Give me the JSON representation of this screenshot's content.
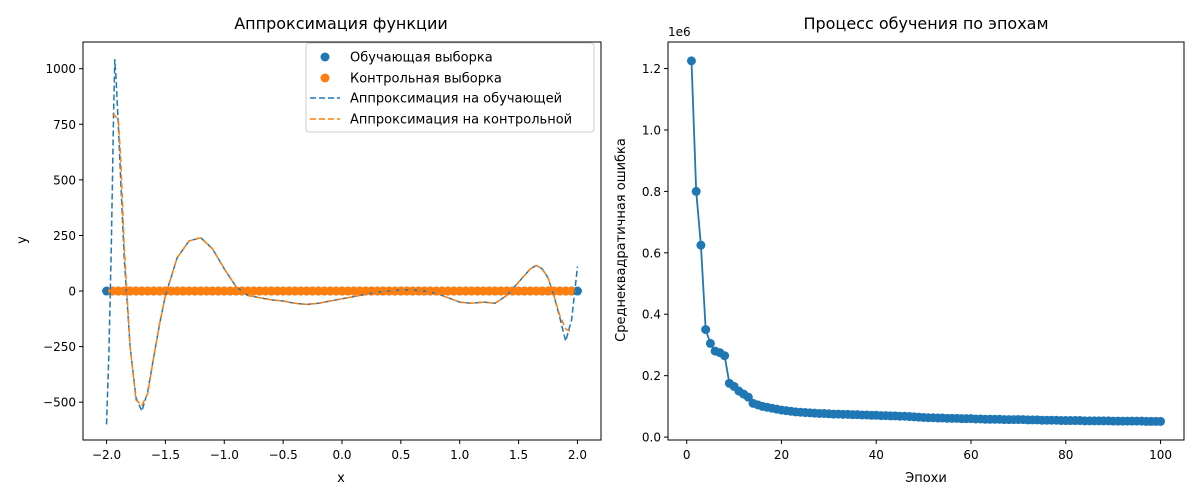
{
  "chart_data": [
    {
      "type": "scatter",
      "title": "Аппроксимация функции",
      "xlabel": "x",
      "ylabel": "y",
      "xlim": [
        -2.2,
        2.2
      ],
      "ylim": [
        -670,
        1120
      ],
      "xticks": [
        -2.0,
        -1.5,
        -1.0,
        -0.5,
        0.0,
        0.5,
        1.0,
        1.5,
        2.0
      ],
      "xtick_labels": [
        "−2.0",
        "−1.5",
        "−1.0",
        "−0.5",
        "0.0",
        "0.5",
        "1.0",
        "1.5",
        "2.0"
      ],
      "yticks": [
        -500,
        -250,
        0,
        250,
        500,
        750,
        1000
      ],
      "ytick_labels": [
        "−500",
        "−250",
        "0",
        "250",
        "500",
        "750",
        "1000"
      ],
      "legend_position": "top-right",
      "grid": false,
      "series": [
        {
          "name": "Обучающая выборка",
          "kind": "scatter",
          "color": "#1f77b4",
          "x_range": [
            -2.0,
            2.0
          ],
          "count": 81,
          "y_value": 0
        },
        {
          "name": "Контрольная выборка",
          "kind": "scatter",
          "color": "#ff7f0e",
          "x_range": [
            -1.95,
            1.95
          ],
          "count": 79,
          "y_value": 0
        },
        {
          "name": "Аппроксимация на обучающей",
          "kind": "dashed-line",
          "color": "#1f77b4",
          "x": [
            -2.0,
            -1.98,
            -1.96,
            -1.94,
            -1.93,
            -1.92,
            -1.9,
            -1.88,
            -1.85,
            -1.8,
            -1.75,
            -1.7,
            -1.65,
            -1.6,
            -1.55,
            -1.5,
            -1.4,
            -1.3,
            -1.2,
            -1.1,
            -1.0,
            -0.9,
            -0.8,
            -0.7,
            -0.6,
            -0.5,
            -0.4,
            -0.3,
            -0.2,
            -0.1,
            0.0,
            0.1,
            0.2,
            0.3,
            0.4,
            0.5,
            0.6,
            0.7,
            0.8,
            0.9,
            1.0,
            1.1,
            1.2,
            1.3,
            1.4,
            1.5,
            1.6,
            1.65,
            1.7,
            1.75,
            1.8,
            1.85,
            1.9,
            1.95,
            2.0
          ],
          "y": [
            -600,
            -280,
            200,
            800,
            1040,
            960,
            750,
            500,
            150,
            -250,
            -480,
            -540,
            -450,
            -300,
            -150,
            -20,
            150,
            225,
            240,
            190,
            100,
            20,
            -20,
            -30,
            -40,
            -45,
            -55,
            -60,
            -55,
            -45,
            -35,
            -25,
            -15,
            -5,
            0,
            5,
            5,
            0,
            -10,
            -30,
            -50,
            -55,
            -50,
            -55,
            -20,
            40,
            100,
            115,
            100,
            60,
            -20,
            -120,
            -225,
            -130,
            110
          ]
        },
        {
          "name": "Аппроксимация на контрольной",
          "kind": "dashed-line",
          "color": "#ff7f0e",
          "x": [
            -1.95,
            -1.93,
            -1.9,
            -1.88,
            -1.85,
            -1.8,
            -1.75,
            -1.7,
            -1.65,
            -1.6,
            -1.55,
            -1.5,
            -1.4,
            -1.3,
            -1.2,
            -1.1,
            -1.0,
            -0.9,
            -0.8,
            -0.7,
            -0.6,
            -0.5,
            -0.4,
            -0.3,
            -0.2,
            -0.1,
            0.0,
            0.1,
            0.2,
            0.3,
            0.4,
            0.5,
            0.6,
            0.7,
            0.8,
            0.9,
            1.0,
            1.1,
            1.2,
            1.3,
            1.4,
            1.5,
            1.6,
            1.65,
            1.7,
            1.75,
            1.8,
            1.85,
            1.9,
            1.95
          ],
          "y": [
            795,
            790,
            770,
            600,
            200,
            -250,
            -490,
            -515,
            -460,
            -300,
            -150,
            -20,
            150,
            225,
            240,
            190,
            100,
            20,
            -20,
            -30,
            -40,
            -45,
            -55,
            -60,
            -55,
            -45,
            -35,
            -25,
            -15,
            -5,
            0,
            5,
            5,
            0,
            -10,
            -30,
            -50,
            -55,
            -50,
            -55,
            -20,
            40,
            100,
            115,
            100,
            60,
            -20,
            -110,
            -170,
            -185
          ]
        }
      ]
    },
    {
      "type": "line",
      "title": "Процесс обучения по эпохам",
      "xlabel": "Эпохи",
      "ylabel": "Среднеквадратичная ошибка",
      "offset_text": "1e6",
      "xlim": [
        -3.95,
        104.95
      ],
      "ylim": [
        -0.00945,
        1.28645
      ],
      "xticks": [
        0,
        20,
        40,
        60,
        80,
        100
      ],
      "xtick_labels": [
        "0",
        "20",
        "40",
        "60",
        "80",
        "100"
      ],
      "yticks": [
        0.0,
        0.2,
        0.4,
        0.6,
        0.8,
        1.0,
        1.2
      ],
      "ytick_labels": [
        "0.0",
        "0.2",
        "0.4",
        "0.6",
        "0.8",
        "1.0",
        "1.2"
      ],
      "grid": false,
      "series": [
        {
          "color": "#1f77b4",
          "marker": "circle",
          "x": [
            1,
            2,
            3,
            4,
            5,
            6,
            7,
            8,
            9,
            10,
            11,
            12,
            13,
            14,
            15,
            16,
            17,
            18,
            19,
            20,
            21,
            22,
            23,
            24,
            25,
            26,
            27,
            28,
            29,
            30,
            31,
            32,
            33,
            34,
            35,
            36,
            37,
            38,
            39,
            40,
            41,
            42,
            43,
            44,
            45,
            46,
            47,
            48,
            49,
            50,
            51,
            52,
            53,
            54,
            55,
            56,
            57,
            58,
            59,
            60,
            61,
            62,
            63,
            64,
            65,
            66,
            67,
            68,
            69,
            70,
            71,
            72,
            73,
            74,
            75,
            76,
            77,
            78,
            79,
            80,
            81,
            82,
            83,
            84,
            85,
            86,
            87,
            88,
            89,
            90,
            91,
            92,
            93,
            94,
            95,
            96,
            97,
            98,
            99,
            100
          ],
          "y": [
            1.225,
            0.8,
            0.625,
            0.35,
            0.305,
            0.28,
            0.275,
            0.265,
            0.175,
            0.165,
            0.15,
            0.14,
            0.13,
            0.11,
            0.105,
            0.1,
            0.097,
            0.094,
            0.091,
            0.088,
            0.086,
            0.084,
            0.082,
            0.081,
            0.08,
            0.079,
            0.078,
            0.077,
            0.077,
            0.076,
            0.075,
            0.075,
            0.074,
            0.074,
            0.073,
            0.073,
            0.072,
            0.072,
            0.071,
            0.071,
            0.07,
            0.07,
            0.069,
            0.069,
            0.068,
            0.068,
            0.067,
            0.066,
            0.065,
            0.064,
            0.063,
            0.063,
            0.062,
            0.062,
            0.061,
            0.061,
            0.061,
            0.06,
            0.06,
            0.06,
            0.059,
            0.059,
            0.058,
            0.058,
            0.058,
            0.058,
            0.057,
            0.057,
            0.057,
            0.057,
            0.057,
            0.056,
            0.056,
            0.056,
            0.055,
            0.055,
            0.055,
            0.055,
            0.054,
            0.054,
            0.054,
            0.054,
            0.054,
            0.053,
            0.053,
            0.053,
            0.053,
            0.053,
            0.053,
            0.052,
            0.052,
            0.052,
            0.052,
            0.052,
            0.052,
            0.052,
            0.051,
            0.051,
            0.051,
            0.051
          ]
        }
      ]
    }
  ]
}
